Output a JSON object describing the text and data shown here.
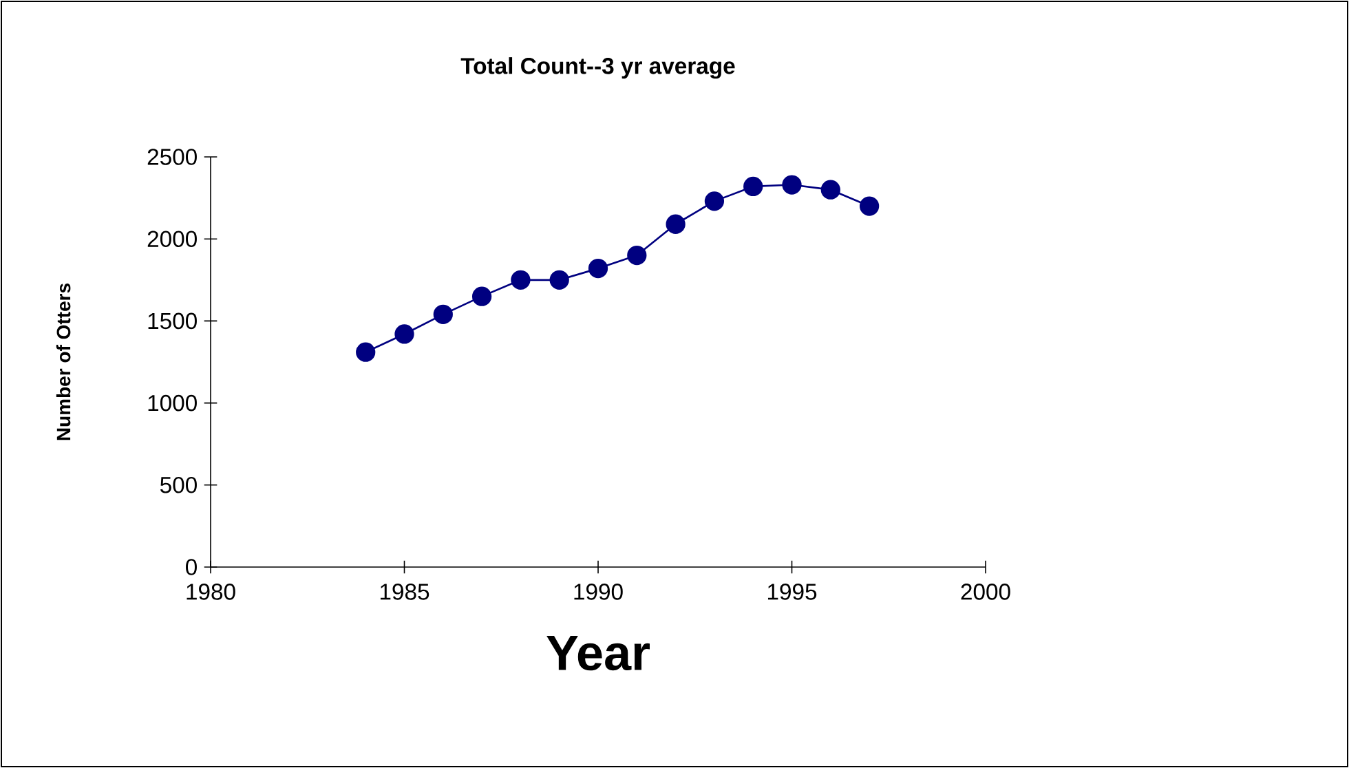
{
  "chart_data": {
    "type": "line",
    "title": "Total Count--3 yr average",
    "xlabel": "Year",
    "ylabel": "Number of Otters",
    "x": [
      1984,
      1985,
      1986,
      1987,
      1988,
      1989,
      1990,
      1991,
      1992,
      1993,
      1994,
      1995,
      1996,
      1997
    ],
    "series": [
      {
        "color": "#000080",
        "values": [
          1310,
          1420,
          1540,
          1650,
          1750,
          1750,
          1820,
          1900,
          2090,
          2230,
          2320,
          2330,
          2300,
          2200
        ]
      }
    ],
    "xlim": [
      1980,
      2000
    ],
    "xticks": [
      1980,
      1985,
      1990,
      1995,
      2000
    ],
    "ylim": [
      0,
      2500
    ],
    "yticks": [
      0,
      500,
      1000,
      1500,
      2000,
      2500
    ],
    "grid": false,
    "marker": "circle",
    "line_style": "solid"
  }
}
